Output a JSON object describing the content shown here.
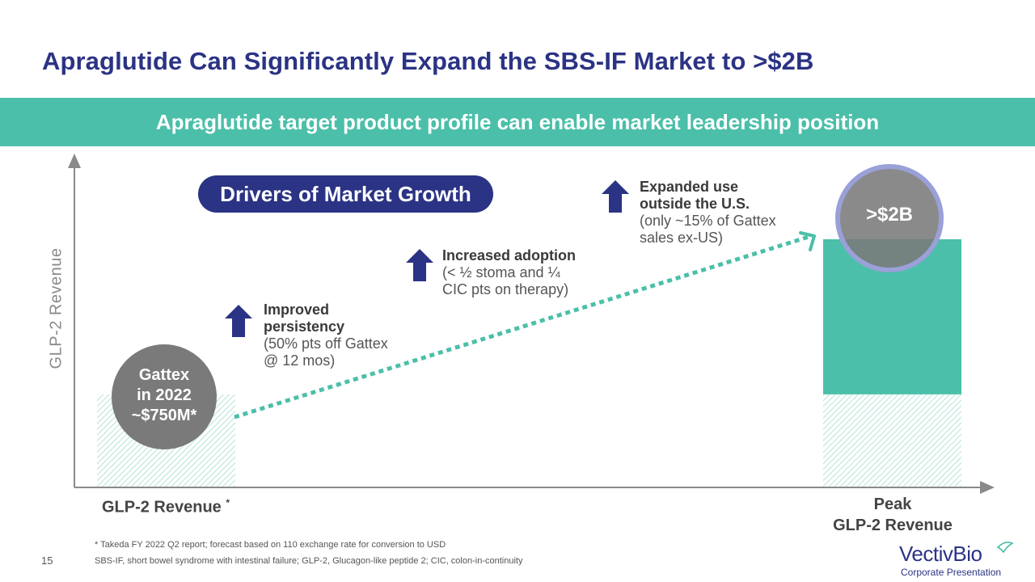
{
  "title": "Apraglutide Can Significantly Expand the SBS-IF Market to >$2B",
  "banner": "Apraglutide target product profile can enable market leadership position",
  "drivers_title": "Drivers of Market Growth",
  "drivers": [
    {
      "bold": "Improved persistency",
      "rest": "(50% pts off Gattex @ 12 mos)"
    },
    {
      "bold": "Increased adoption",
      "rest": "(< ½ stoma and ¼ CIC pts on therapy)"
    },
    {
      "bold": "Expanded use outside the U.S.",
      "rest": "(only ~15% of Gattex sales ex-US)"
    }
  ],
  "colors": {
    "navy": "#2b3384",
    "teal": "#4bbfa9",
    "gray": "#7a7a7a",
    "ring": "#9aa0d8"
  },
  "chart_data": {
    "type": "bar",
    "categories": [
      "GLP-2 Revenue",
      "Peak GLP-2 Revenue"
    ],
    "category_display": [
      "GLP-2 Revenue*",
      "Peak\nGLP-2 Revenue"
    ],
    "ylabel": "GLP-2 Revenue",
    "series": [
      {
        "values": [
          750,
          750
        ],
        "style": "hatched"
      },
      {
        "values": [
          0,
          1250
        ],
        "style": "solid-teal"
      }
    ],
    "annotations": [
      {
        "category": "GLP-2 Revenue",
        "lines": [
          "Gattex",
          "in 2022",
          "~$750M*"
        ]
      },
      {
        "category": "Peak GLP-2 Revenue",
        "text": ">$2B"
      }
    ],
    "ylim": [
      0,
      2000
    ]
  },
  "footnotes": [
    "* Takeda FY 2022 Q2 report; forecast based on 110 exchange rate for conversion to USD",
    "SBS-IF, short bowel syndrome with intestinal failure; GLP-2, Glucagon-like peptide 2; CIC, colon-in-continuity"
  ],
  "page_number": "15",
  "logo": {
    "name": "VectivBio",
    "subtitle": "Corporate Presentation"
  }
}
